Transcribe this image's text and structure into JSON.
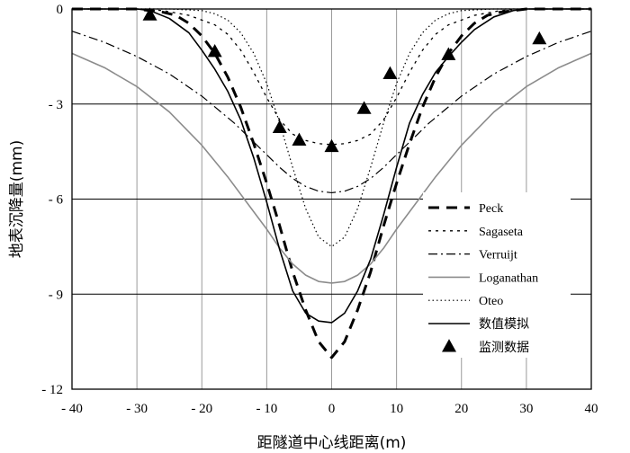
{
  "chart_data": {
    "type": "line",
    "title": "",
    "xlabel": "距隧道中心线距离(m)",
    "ylabel": "地表沉降量(mm)",
    "xlim": [
      -40,
      40
    ],
    "ylim": [
      -12,
      0
    ],
    "xticks": [
      -40,
      -30,
      -20,
      -10,
      0,
      10,
      20,
      30,
      40
    ],
    "yticks": [
      0,
      -3,
      -6,
      -9,
      -12
    ],
    "xtick_labels": [
      "- 40",
      "- 30",
      "- 20",
      "- 10",
      "0",
      "10",
      "20",
      "30",
      "40"
    ],
    "ytick_labels": [
      "0",
      "- 3",
      "- 6",
      "- 9",
      "- 12"
    ],
    "grid": true,
    "legend_position": "bottom-right",
    "series": [
      {
        "name": "Peck",
        "style": "long-dash-thick",
        "color": "#000000",
        "x": [
          -40,
          -30,
          -26,
          -24,
          -22,
          -20,
          -18,
          -16,
          -14,
          -12,
          -10,
          -8,
          -6,
          -4,
          -2,
          0,
          2,
          4,
          6,
          8,
          10,
          12,
          14,
          16,
          18,
          20,
          22,
          24,
          26,
          30,
          40
        ],
        "y": [
          0,
          0,
          -0.1,
          -0.2,
          -0.45,
          -0.85,
          -1.4,
          -2.15,
          -3.1,
          -4.25,
          -5.5,
          -6.85,
          -8.3,
          -9.5,
          -10.5,
          -11.0,
          -10.5,
          -9.5,
          -8.3,
          -6.85,
          -5.5,
          -4.25,
          -3.1,
          -2.15,
          -1.4,
          -0.85,
          -0.45,
          -0.2,
          -0.1,
          0,
          0
        ]
      },
      {
        "name": "Sagaseta",
        "style": "dotted",
        "color": "#000000",
        "x": [
          -40,
          -30,
          -26,
          -22,
          -18,
          -16,
          -14,
          -12,
          -10,
          -8,
          -6,
          -4,
          -2,
          0,
          2,
          4,
          6,
          8,
          10,
          12,
          14,
          16,
          18,
          22,
          26,
          30,
          40
        ],
        "y": [
          0,
          0,
          -0.05,
          -0.2,
          -0.5,
          -0.8,
          -1.3,
          -2.0,
          -2.8,
          -3.5,
          -3.95,
          -4.15,
          -4.25,
          -4.28,
          -4.25,
          -4.15,
          -3.95,
          -3.5,
          -2.8,
          -2.0,
          -1.3,
          -0.8,
          -0.5,
          -0.2,
          -0.05,
          0,
          0
        ]
      },
      {
        "name": "Verruijt",
        "style": "dash-dot",
        "color": "#000000",
        "x": [
          -40,
          -35,
          -30,
          -25,
          -20,
          -15,
          -12,
          -10,
          -8,
          -6,
          -4,
          -2,
          0,
          2,
          4,
          6,
          8,
          10,
          12,
          15,
          20,
          25,
          30,
          35,
          40
        ],
        "y": [
          -0.7,
          -1.05,
          -1.5,
          -2.05,
          -2.75,
          -3.6,
          -4.2,
          -4.6,
          -5.0,
          -5.35,
          -5.6,
          -5.75,
          -5.8,
          -5.75,
          -5.6,
          -5.35,
          -5.0,
          -4.6,
          -4.2,
          -3.6,
          -2.75,
          -2.05,
          -1.5,
          -1.05,
          -0.7
        ]
      },
      {
        "name": "Loganathan",
        "style": "solid-grey",
        "color": "#8c8c8c",
        "x": [
          -40,
          -35,
          -30,
          -25,
          -20,
          -16,
          -12,
          -10,
          -8,
          -6,
          -4,
          -2,
          0,
          2,
          4,
          6,
          8,
          10,
          12,
          16,
          20,
          25,
          30,
          35,
          40
        ],
        "y": [
          -1.4,
          -1.85,
          -2.45,
          -3.25,
          -4.3,
          -5.3,
          -6.4,
          -6.95,
          -7.55,
          -8.05,
          -8.4,
          -8.6,
          -8.65,
          -8.6,
          -8.4,
          -8.05,
          -7.55,
          -6.95,
          -6.4,
          -5.3,
          -4.3,
          -3.25,
          -2.45,
          -1.85,
          -1.4
        ]
      },
      {
        "name": "Oteo",
        "style": "fine-dotted",
        "color": "#000000",
        "x": [
          -40,
          -30,
          -25,
          -20,
          -18,
          -16,
          -14,
          -12,
          -10,
          -8,
          -6,
          -4,
          -2,
          0,
          2,
          4,
          6,
          8,
          10,
          12,
          14,
          16,
          18,
          20,
          25,
          30,
          40
        ],
        "y": [
          0,
          0,
          0,
          -0.05,
          -0.15,
          -0.35,
          -0.75,
          -1.4,
          -2.35,
          -3.6,
          -5.0,
          -6.3,
          -7.2,
          -7.5,
          -7.2,
          -6.3,
          -5.0,
          -3.6,
          -2.35,
          -1.4,
          -0.75,
          -0.35,
          -0.15,
          -0.05,
          0,
          0,
          0
        ]
      },
      {
        "name": "数值模拟",
        "style": "solid",
        "color": "#000000",
        "x": [
          -40,
          -30,
          -28,
          -25,
          -22,
          -20,
          -18,
          -16,
          -14,
          -12,
          -10,
          -8,
          -6,
          -4,
          -2,
          0,
          2,
          4,
          6,
          8,
          10,
          12,
          14,
          16,
          18,
          20,
          22,
          25,
          28,
          30,
          40
        ],
        "y": [
          0,
          0,
          -0.05,
          -0.3,
          -0.75,
          -1.3,
          -1.9,
          -2.6,
          -3.5,
          -4.7,
          -6.1,
          -7.6,
          -8.9,
          -9.6,
          -9.85,
          -9.9,
          -9.6,
          -8.9,
          -7.9,
          -6.5,
          -5.0,
          -3.6,
          -2.7,
          -2.0,
          -1.5,
          -1.05,
          -0.65,
          -0.25,
          -0.05,
          0,
          0
        ]
      }
    ],
    "scatter": {
      "name": "监测数据",
      "marker": "triangle",
      "color": "#000000",
      "x": [
        -28,
        -18,
        -8,
        -5,
        0,
        5,
        9,
        18,
        32
      ],
      "y": [
        -0.2,
        -1.35,
        -3.75,
        -4.15,
        -4.35,
        -3.15,
        -2.05,
        -1.45,
        -0.95
      ]
    }
  }
}
